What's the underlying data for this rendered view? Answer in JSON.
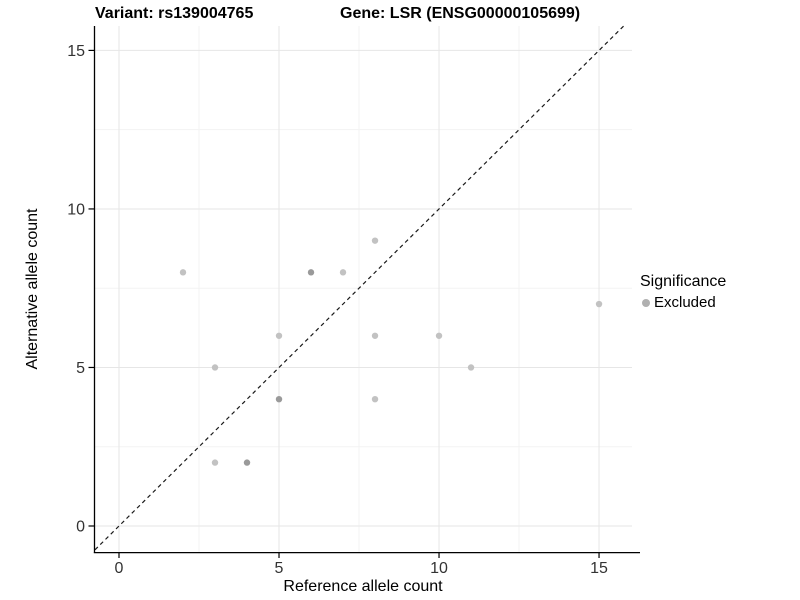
{
  "chart_data": {
    "type": "scatter",
    "title_left": "Variant: rs139004765",
    "title_right": "Gene: LSR (ENSG00000105699)",
    "xlabel": "Reference allele count",
    "ylabel": "Alternative allele count",
    "x_ticks": [
      0,
      5,
      10,
      15
    ],
    "y_ticks": [
      0,
      5,
      10,
      15
    ],
    "x_minor": [
      2.5,
      7.5,
      12.5
    ],
    "y_minor": [
      2.5,
      7.5,
      12.5
    ],
    "xlim": [
      -0.75,
      16.03
    ],
    "ylim": [
      -0.82,
      15.77
    ],
    "grid": true,
    "identity_line": {
      "style": "dashed",
      "from": [
        -0.75,
        -0.75
      ],
      "to": [
        15.77,
        15.77
      ]
    },
    "points": [
      {
        "x": 2,
        "y": 8,
        "n": 1
      },
      {
        "x": 3,
        "y": 2,
        "n": 1
      },
      {
        "x": 3,
        "y": 5,
        "n": 1
      },
      {
        "x": 4,
        "y": 2,
        "n": 2
      },
      {
        "x": 5,
        "y": 4,
        "n": 2
      },
      {
        "x": 5,
        "y": 6,
        "n": 1
      },
      {
        "x": 6,
        "y": 8,
        "n": 2
      },
      {
        "x": 7,
        "y": 8,
        "n": 1
      },
      {
        "x": 8,
        "y": 4,
        "n": 1
      },
      {
        "x": 8,
        "y": 6,
        "n": 1
      },
      {
        "x": 8,
        "y": 9,
        "n": 1
      },
      {
        "x": 10,
        "y": 6,
        "n": 1
      },
      {
        "x": 11,
        "y": 5,
        "n": 1
      },
      {
        "x": 15,
        "y": 7,
        "n": 1
      }
    ],
    "colors": {
      "point": "#c2c2c2",
      "point_overlap": "#9a9a9a",
      "grid_major": "#e6e6e6",
      "grid_minor": "#f3f3f3",
      "axis": "#000000",
      "dash_line": "#1a1a1a",
      "tick_label": "#333333",
      "legend_key": "#b0b0b0"
    },
    "legend": {
      "title": "Significance",
      "position": "right",
      "items": [
        {
          "label": "Excluded",
          "color": "#b0b0b0"
        }
      ]
    }
  }
}
